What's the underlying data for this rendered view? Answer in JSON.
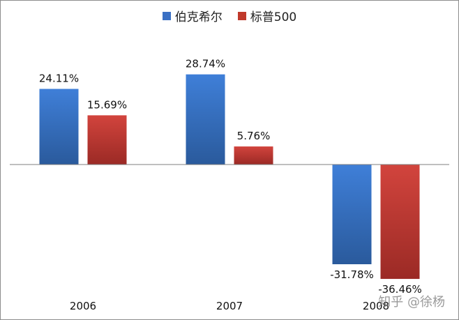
{
  "chart_data": {
    "type": "bar",
    "categories": [
      "2006",
      "2007",
      "2008"
    ],
    "series": [
      {
        "name": "伯克希尔",
        "values": [
          24.11,
          28.74,
          -31.78
        ],
        "labels": [
          "24.11%",
          "28.74%",
          "-31.78%"
        ],
        "color": "#3a70c4"
      },
      {
        "name": "标普500",
        "values": [
          15.69,
          5.76,
          -36.46
        ],
        "labels": [
          "15.69%",
          "5.76%",
          "-36.46%"
        ],
        "color": "#c0392b"
      }
    ],
    "ylim": [
      -40,
      35
    ],
    "grid": false,
    "legend_position": "top-center",
    "title": "",
    "xlabel": "",
    "ylabel": ""
  },
  "watermark": "知乎 @徐杨"
}
